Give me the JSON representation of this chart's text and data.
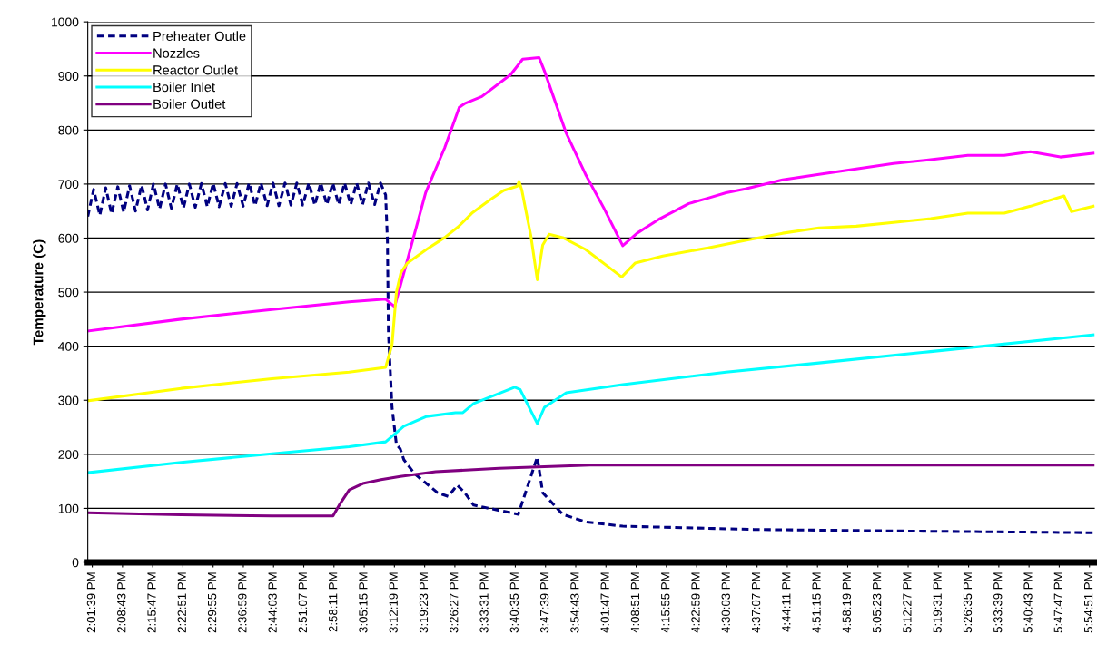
{
  "chart_data": {
    "type": "line",
    "ylabel": "Temperature (C)",
    "xlim": [
      14.01,
      17.935
    ],
    "ylim": [
      0,
      1000
    ],
    "yticks": [
      0,
      100,
      200,
      300,
      400,
      500,
      600,
      700,
      800,
      900,
      1000
    ],
    "xticks": [
      {
        "value": 14.0275,
        "label": "2:01:39 PM"
      },
      {
        "value": 14.14528,
        "label": "2:08:43 PM"
      },
      {
        "value": 14.26306,
        "label": "2:15:47 PM"
      },
      {
        "value": 14.38083,
        "label": "2:22:51 PM"
      },
      {
        "value": 14.49861,
        "label": "2:29:55 PM"
      },
      {
        "value": 14.61639,
        "label": "2:36:59 PM"
      },
      {
        "value": 14.73417,
        "label": "2:44:03 PM"
      },
      {
        "value": 14.85194,
        "label": "2:51:07 PM"
      },
      {
        "value": 14.96972,
        "label": "2:58:11 PM"
      },
      {
        "value": 15.0875,
        "label": "3:05:15 PM"
      },
      {
        "value": 15.20528,
        "label": "3:12:19 PM"
      },
      {
        "value": 15.32306,
        "label": "3:19:23 PM"
      },
      {
        "value": 15.44083,
        "label": "3:26:27 PM"
      },
      {
        "value": 15.55861,
        "label": "3:33:31 PM"
      },
      {
        "value": 15.67639,
        "label": "3:40:35 PM"
      },
      {
        "value": 15.79417,
        "label": "3:47:39 PM"
      },
      {
        "value": 15.91194,
        "label": "3:54:43 PM"
      },
      {
        "value": 16.02972,
        "label": "4:01:47 PM"
      },
      {
        "value": 16.1475,
        "label": "4:08:51 PM"
      },
      {
        "value": 16.26528,
        "label": "4:15:55 PM"
      },
      {
        "value": 16.38306,
        "label": "4:22:59 PM"
      },
      {
        "value": 16.50083,
        "label": "4:30:03 PM"
      },
      {
        "value": 16.61861,
        "label": "4:37:07 PM"
      },
      {
        "value": 16.73639,
        "label": "4:44:11 PM"
      },
      {
        "value": 16.85417,
        "label": "4:51:15 PM"
      },
      {
        "value": 16.97194,
        "label": "4:58:19 PM"
      },
      {
        "value": 17.08972,
        "label": "5:05:23 PM"
      },
      {
        "value": 17.2075,
        "label": "5:12:27 PM"
      },
      {
        "value": 17.32528,
        "label": "5:19:31 PM"
      },
      {
        "value": 17.44306,
        "label": "5:26:35 PM"
      },
      {
        "value": 17.56083,
        "label": "5:33:39 PM"
      },
      {
        "value": 17.67861,
        "label": "5:40:43 PM"
      },
      {
        "value": 17.79639,
        "label": "5:47:47 PM"
      },
      {
        "value": 17.91417,
        "label": "5:54:51 PM"
      }
    ],
    "grid": "y",
    "legend": "top left",
    "marker": "none",
    "series": [
      {
        "name": "Preheater Outle",
        "color": "#000080",
        "line_style": "dashed",
        "x": [
          14.01,
          14.033,
          14.057,
          14.08,
          14.103,
          14.127,
          14.15,
          14.173,
          14.196,
          14.22,
          14.243,
          14.266,
          14.29,
          14.313,
          14.336,
          14.359,
          14.383,
          14.406,
          14.429,
          14.453,
          14.476,
          14.499,
          14.522,
          14.546,
          14.569,
          14.592,
          14.616,
          14.639,
          14.662,
          14.685,
          14.709,
          14.732,
          14.755,
          14.779,
          14.802,
          14.825,
          14.848,
          14.872,
          14.895,
          14.918,
          14.942,
          14.965,
          14.988,
          15.011,
          15.035,
          15.058,
          15.081,
          15.104,
          15.128,
          15.151,
          15.171,
          15.178,
          15.182,
          15.196,
          15.213,
          15.228,
          15.242,
          15.284,
          15.373,
          15.415,
          15.45,
          15.479,
          15.514,
          15.688,
          15.762,
          15.783,
          15.861,
          15.95,
          16.095,
          16.605,
          17.206,
          17.929
        ],
        "values": [
          640,
          690,
          642,
          693,
          645,
          695,
          648,
          697,
          650,
          698,
          652,
          700,
          654,
          700,
          655,
          700,
          656,
          700,
          657,
          701,
          658,
          701,
          658,
          701,
          659,
          701,
          659,
          702,
          660,
          702,
          660,
          702,
          660,
          702,
          661,
          702,
          661,
          702,
          661,
          702,
          662,
          702,
          662,
          702,
          662,
          702,
          662,
          702,
          662,
          702,
          680,
          596,
          424,
          287,
          218,
          210,
          190,
          164,
          129,
          122,
          143,
          129,
          106,
          89,
          195,
          129,
          89,
          75,
          67,
          61,
          58,
          55
        ]
      },
      {
        "name": "Nozzles",
        "color": "#ff00ff",
        "line_style": "solid",
        "x": [
          14.01,
          14.374,
          14.728,
          15.029,
          15.171,
          15.206,
          15.256,
          15.327,
          15.401,
          15.458,
          15.479,
          15.546,
          15.659,
          15.705,
          15.769,
          15.79,
          15.875,
          15.95,
          16.021,
          16.095,
          16.151,
          16.24,
          16.353,
          16.428,
          16.498,
          16.573,
          16.718,
          16.86,
          17.005,
          17.15,
          17.295,
          17.44,
          17.582,
          17.684,
          17.801,
          17.929
        ],
        "values": [
          428,
          450,
          468,
          482,
          487,
          473,
          560,
          684,
          767,
          842,
          849,
          862,
          903,
          931,
          934,
          909,
          794,
          718,
          656,
          586,
          609,
          636,
          664,
          674,
          684,
          691,
          708,
          718,
          728,
          738,
          745,
          753,
          753,
          760,
          750,
          757
        ]
      },
      {
        "name": "Reactor Outlet",
        "color": "#ffff00",
        "line_style": "solid",
        "x": [
          14.01,
          14.374,
          14.728,
          15.029,
          15.171,
          15.196,
          15.213,
          15.231,
          15.256,
          15.33,
          15.401,
          15.454,
          15.507,
          15.578,
          15.631,
          15.684,
          15.691,
          15.702,
          15.737,
          15.762,
          15.783,
          15.808,
          15.861,
          15.95,
          16.091,
          16.144,
          16.251,
          16.428,
          16.573,
          16.718,
          16.86,
          17.005,
          17.15,
          17.295,
          17.44,
          17.582,
          17.684,
          17.815,
          17.844,
          17.929
        ],
        "values": [
          299,
          322,
          340,
          352,
          361,
          403,
          500,
          537,
          554,
          579,
          601,
          621,
          646,
          671,
          688,
          696,
          705,
          688,
          604,
          523,
          587,
          607,
          601,
          579,
          528,
          554,
          567,
          582,
          596,
          609,
          619,
          622,
          629,
          636,
          646,
          646,
          659,
          678,
          649,
          659
        ]
      },
      {
        "name": "Boiler Inlet",
        "color": "#00ffff",
        "line_style": "solid",
        "x": [
          14.01,
          14.374,
          14.728,
          15.029,
          15.171,
          15.242,
          15.33,
          15.443,
          15.472,
          15.514,
          15.674,
          15.695,
          15.762,
          15.79,
          15.875,
          16.095,
          16.498,
          16.86,
          17.295,
          17.929
        ],
        "values": [
          166,
          185,
          201,
          214,
          223,
          252,
          270,
          277,
          277,
          294,
          324,
          320,
          257,
          287,
          314,
          329,
          352,
          369,
          390,
          421
        ]
      },
      {
        "name": "Boiler Outlet",
        "color": "#800080",
        "line_style": "solid",
        "x": [
          14.01,
          14.374,
          14.728,
          14.966,
          14.994,
          15.029,
          15.082,
          15.153,
          15.228,
          15.366,
          15.613,
          15.967,
          16.498,
          17.929
        ],
        "values": [
          92,
          88,
          86,
          86,
          109,
          134,
          146,
          153,
          159,
          168,
          174,
          180,
          180,
          180
        ]
      }
    ]
  }
}
